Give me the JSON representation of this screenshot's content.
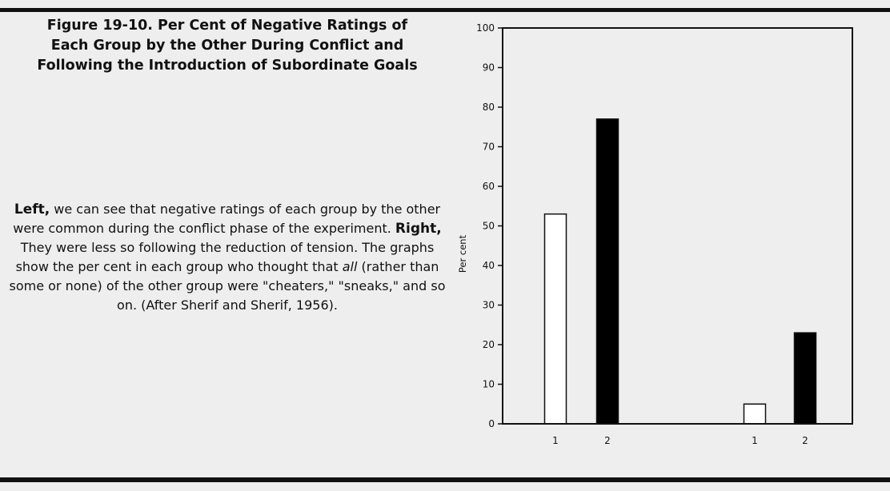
{
  "figure": {
    "title": "Figure 19-10. Per Cent of Negative Ratings of\nEach Group by the Other During Conflict and\nFollowing the Introduction of Subordinate Goals"
  },
  "caption": {
    "left_label": "Left,",
    "part1": " we can see that negative ratings of each group by the other were common during the conflict phase of the experiment. ",
    "right_label": "Right,",
    "part2": " They were less so following the reduction of tension. The graphs show the per cent in each group who thought that ",
    "emphasis": "all",
    "part3": " (rather than some or none) of the other group were \"cheaters,\" \"sneaks,\" and so on. (After Sherif and Sherif, 1956)."
  },
  "chart_data": {
    "type": "bar",
    "ylabel": "Per cent",
    "xlabel": "",
    "ylim": [
      0,
      100
    ],
    "yticks": [
      0,
      10,
      20,
      30,
      40,
      50,
      60,
      70,
      80,
      90,
      100
    ],
    "grid": false,
    "bars": [
      {
        "panel": "left",
        "label": "1",
        "value": 53,
        "fill": "#ffffff"
      },
      {
        "panel": "left",
        "label": "2",
        "value": 77,
        "fill": "#000000"
      },
      {
        "panel": "right",
        "label": "1",
        "value": 5,
        "fill": "#ffffff"
      },
      {
        "panel": "right",
        "label": "2",
        "value": 23,
        "fill": "#000000"
      }
    ]
  }
}
